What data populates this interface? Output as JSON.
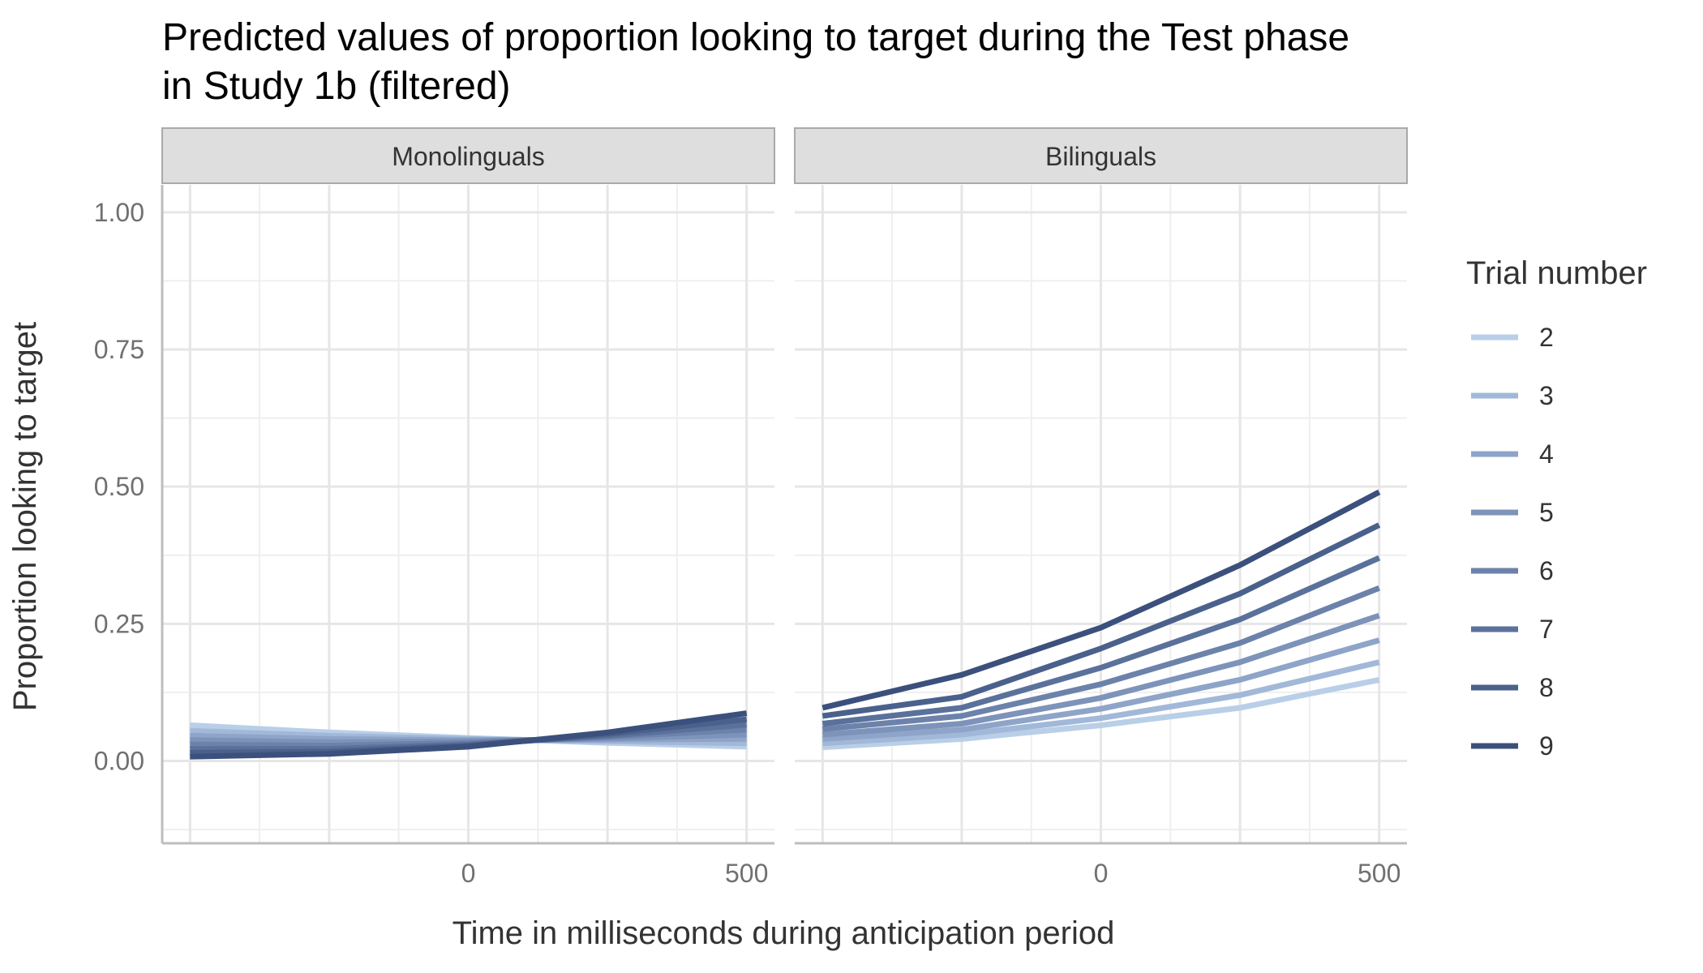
{
  "chart_data": {
    "type": "line",
    "title": "Predicted values of proportion looking to target during the Test phase\n in Study 1b (filtered)",
    "xlabel": "Time in milliseconds during anticipation period",
    "ylabel": "Proportion looking to target",
    "x": [
      -500,
      -250,
      0,
      250,
      500
    ],
    "x_ticks": [
      0,
      500
    ],
    "y_ticks": [
      0.0,
      0.25,
      0.5,
      0.75,
      1.0
    ],
    "y_tick_labels": [
      "0.00",
      "0.25",
      "0.50",
      "0.75",
      "1.00"
    ],
    "xlim": [
      -550,
      550
    ],
    "ylim": [
      -0.15,
      1.05
    ],
    "grid": true,
    "legend": {
      "title": "Trial number",
      "position": "right"
    },
    "panels": [
      {
        "label": "Monolinguals",
        "series": [
          {
            "name": "2",
            "color": "#b9cfe8",
            "values": [
              0.065,
              0.052,
              0.042,
              0.033,
              0.026
            ]
          },
          {
            "name": "3",
            "color": "#a2b8d9",
            "values": [
              0.055,
              0.046,
              0.04,
              0.036,
              0.032
            ]
          },
          {
            "name": "4",
            "color": "#8ea4c9",
            "values": [
              0.046,
              0.04,
              0.038,
              0.039,
              0.04
            ]
          },
          {
            "name": "5",
            "color": "#7d93ba",
            "values": [
              0.038,
              0.034,
              0.036,
              0.041,
              0.048
            ]
          },
          {
            "name": "6",
            "color": "#6c82ab",
            "values": [
              0.03,
              0.028,
              0.033,
              0.044,
              0.057
            ]
          },
          {
            "name": "7",
            "color": "#5a719b",
            "values": [
              0.022,
              0.022,
              0.03,
              0.046,
              0.066
            ]
          },
          {
            "name": "8",
            "color": "#4a618c",
            "values": [
              0.015,
              0.017,
              0.028,
              0.049,
              0.076
            ]
          },
          {
            "name": "9",
            "color": "#3b507c",
            "values": [
              0.008,
              0.013,
              0.026,
              0.052,
              0.087
            ]
          }
        ]
      },
      {
        "label": "Bilinguals",
        "series": [
          {
            "name": "2",
            "color": "#b9cfe8",
            "values": [
              0.025,
              0.04,
              0.065,
              0.097,
              0.148
            ]
          },
          {
            "name": "3",
            "color": "#a2b8d9",
            "values": [
              0.032,
              0.048,
              0.078,
              0.12,
              0.18
            ]
          },
          {
            "name": "4",
            "color": "#8ea4c9",
            "values": [
              0.04,
              0.057,
              0.095,
              0.148,
              0.22
            ]
          },
          {
            "name": "5",
            "color": "#7d93ba",
            "values": [
              0.048,
              0.068,
              0.115,
              0.18,
              0.265
            ]
          },
          {
            "name": "6",
            "color": "#6c82ab",
            "values": [
              0.058,
              0.082,
              0.14,
              0.215,
              0.315
            ]
          },
          {
            "name": "7",
            "color": "#5a719b",
            "values": [
              0.068,
              0.097,
              0.17,
              0.258,
              0.37
            ]
          },
          {
            "name": "8",
            "color": "#4a618c",
            "values": [
              0.082,
              0.117,
              0.205,
              0.305,
              0.43
            ]
          },
          {
            "name": "9",
            "color": "#3b507c",
            "values": [
              0.097,
              0.157,
              0.243,
              0.357,
              0.49
            ]
          }
        ]
      }
    ]
  }
}
